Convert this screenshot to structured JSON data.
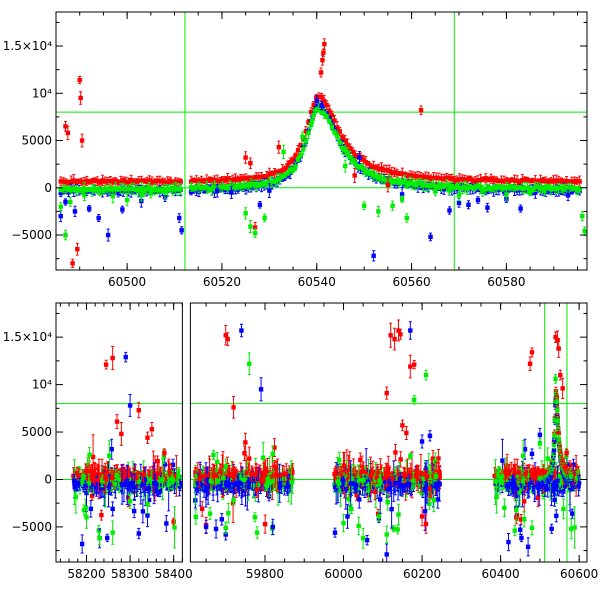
{
  "chart_data": [
    {
      "type": "scatter",
      "panel": "top",
      "xlim": [
        60485,
        60597
      ],
      "ylim": [
        -8700,
        18600
      ],
      "xticks": [
        60500,
        60520,
        60540,
        60560,
        60580
      ],
      "x_tick_labels": [
        "60500",
        "60520",
        "60540",
        "60560",
        "60580"
      ],
      "yticks": [
        -5000,
        0,
        5000,
        10000,
        15000
      ],
      "y_tick_labels": [
        "−5000",
        "0",
        "5000",
        "10⁴",
        "1.5×10⁴"
      ],
      "hlines": [
        0,
        8000
      ],
      "vlines": [
        60512.2,
        60569.0
      ],
      "grid": false,
      "legend": "none",
      "series": [
        {
          "color": "#ff0000",
          "points": [
            [
              60487,
              6500
            ],
            [
              60487.5,
              5800
            ],
            [
              60488.5,
              -8000
            ],
            [
              60489.5,
              -6500
            ],
            [
              60490,
              11400
            ],
            [
              60490.2,
              9500
            ],
            [
              60490.5,
              5000
            ],
            [
              60525,
              3200
            ],
            [
              60526,
              2600
            ],
            [
              60527,
              -4200
            ],
            [
              60532,
              4300
            ],
            [
              60541.6,
              15200
            ],
            [
              60541.4,
              14300
            ],
            [
              60541.2,
              13500
            ],
            [
              60540.9,
              12200
            ],
            [
              60562,
              8200
            ],
            [
              60548,
              1300
            ],
            [
              60555,
              300
            ]
          ]
        },
        {
          "color": "#0000ff",
          "points": [
            [
              60486,
              -3000
            ],
            [
              60487,
              -1500
            ],
            [
              60489,
              -2500
            ],
            [
              60492,
              -2200
            ],
            [
              60494,
              -3200
            ],
            [
              60496,
              -5000
            ],
            [
              60499,
              -2300
            ],
            [
              60503,
              -1400
            ],
            [
              60508,
              -1000
            ],
            [
              60511,
              -3200
            ],
            [
              60511.5,
              -4500
            ],
            [
              60519,
              -300
            ],
            [
              60522,
              -500
            ],
            [
              60528,
              -1800
            ],
            [
              60530,
              -300
            ],
            [
              60540,
              9200
            ],
            [
              60541,
              8700
            ],
            [
              60549,
              3200
            ],
            [
              60552,
              -7200
            ],
            [
              60558,
              -700
            ],
            [
              60564,
              -5200
            ],
            [
              60568,
              -2400
            ],
            [
              60570,
              -1600
            ],
            [
              60572,
              -1800
            ],
            [
              60574,
              -1300
            ],
            [
              60576,
              -2100
            ],
            [
              60580,
              -1200
            ],
            [
              60583,
              -2200
            ],
            [
              60593,
              -800
            ]
          ]
        },
        {
          "color": "#00ee00",
          "points": [
            [
              60486,
              -2000
            ],
            [
              60487,
              -5000
            ],
            [
              60488,
              -1500
            ],
            [
              60491,
              -800
            ],
            [
              60494,
              -300
            ],
            [
              60497,
              -900
            ],
            [
              60500,
              -1300
            ],
            [
              60503,
              -800
            ],
            [
              60505,
              -600
            ],
            [
              60508,
              -400
            ],
            [
              60525,
              -2700
            ],
            [
              60526,
              -4100
            ],
            [
              60527,
              -4800
            ],
            [
              60529,
              -3200
            ],
            [
              60533,
              3800
            ],
            [
              60537,
              5400
            ],
            [
              60539,
              7000
            ],
            [
              60546,
              2300
            ],
            [
              60550,
              -1900
            ],
            [
              60553,
              -2500
            ],
            [
              60556,
              -1900
            ],
            [
              60558,
              -1200
            ],
            [
              60559,
              -3200
            ],
            [
              60565,
              -400
            ],
            [
              60568,
              -300
            ],
            [
              60570,
              -800
            ],
            [
              60575,
              -300
            ],
            [
              60580,
              -700
            ],
            [
              60585,
              -500
            ],
            [
              60588,
              -300
            ],
            [
              60592,
              -200
            ],
            [
              60596,
              -3000
            ],
            [
              60596.5,
              -4600
            ]
          ]
        }
      ]
    },
    {
      "type": "scatter",
      "panel": "bottom",
      "segments": [
        {
          "xlim": [
            58130,
            58420
          ],
          "xticks": [
            58200,
            58300,
            58400
          ],
          "x_tick_labels": [
            "58200",
            "58300",
            "58400"
          ]
        },
        {
          "xlim": [
            59610,
            60620
          ],
          "xticks": [
            59800,
            60000,
            60200,
            60400,
            60600
          ],
          "x_tick_labels": [
            "59800",
            "60000",
            "60200",
            "60400",
            "60600"
          ]
        }
      ],
      "ylim": [
        -8700,
        18600
      ],
      "yticks": [
        -5000,
        0,
        5000,
        10000,
        15000
      ],
      "y_tick_labels": [
        "−5000",
        "0",
        "5000",
        "10⁴",
        "1.5×10⁴"
      ],
      "hlines": [
        0,
        8000
      ],
      "vlines": [
        60512.2,
        60569.0
      ],
      "grid": false,
      "legend": "none",
      "clusters": [
        {
          "xmin": 58170,
          "xmax": 58415,
          "ymin": -2600,
          "ymax": 1800
        },
        {
          "xmin": 59622,
          "xmax": 59870,
          "ymin": -3200,
          "ymax": 2200
        },
        {
          "xmin": 59975,
          "xmax": 60245,
          "ymin": -3000,
          "ymax": 2200
        },
        {
          "xmin": 60385,
          "xmax": 60600,
          "ymin": -2200,
          "ymax": 1800
        }
      ],
      "series": [
        {
          "color": "#ff0000",
          "points": [
            [
              58245,
              12100
            ],
            [
              58260,
              12800
            ],
            [
              58270,
              6100
            ],
            [
              58280,
              4800
            ],
            [
              58320,
              7300
            ],
            [
              58340,
              4400
            ],
            [
              58350,
              5300
            ],
            [
              59640,
              -3100
            ],
            [
              59650,
              -4800
            ],
            [
              59700,
              15200
            ],
            [
              59705,
              14800
            ],
            [
              59720,
              7600
            ],
            [
              59750,
              3900
            ],
            [
              59760,
              2200
            ],
            [
              59780,
              -1100
            ],
            [
              60080,
              -1300
            ],
            [
              60110,
              9100
            ],
            [
              60120,
              15200
            ],
            [
              60130,
              14800
            ],
            [
              60140,
              15700
            ],
            [
              60145,
              15300
            ],
            [
              60150,
              5700
            ],
            [
              60160,
              4900
            ],
            [
              60170,
              11900
            ],
            [
              60180,
              12100
            ],
            [
              60200,
              -3900
            ],
            [
              60210,
              -4700
            ],
            [
              60220,
              -1000
            ],
            [
              60440,
              -4000
            ],
            [
              60460,
              -2300
            ],
            [
              60475,
              12200
            ],
            [
              60480,
              13400
            ],
            [
              60540,
              15000
            ],
            [
              60545,
              14700
            ],
            [
              60548,
              13800
            ],
            [
              60552,
              11000
            ],
            [
              60558,
              9600
            ]
          ]
        },
        {
          "color": "#0000ff",
          "points": [
            [
              58190,
              -6800
            ],
            [
              58210,
              -3100
            ],
            [
              58230,
              -6200
            ],
            [
              58260,
              -3100
            ],
            [
              58290,
              12900
            ],
            [
              58300,
              7800
            ],
            [
              58320,
              -5700
            ],
            [
              58340,
              -3800
            ],
            [
              59650,
              -5000
            ],
            [
              59690,
              -4200
            ],
            [
              59700,
              -5800
            ],
            [
              59740,
              15700
            ],
            [
              59790,
              9500
            ],
            [
              59820,
              -5000
            ],
            [
              60010,
              -3900
            ],
            [
              60040,
              -2100
            ],
            [
              60060,
              -6400
            ],
            [
              60090,
              -4100
            ],
            [
              60110,
              -7900
            ],
            [
              60170,
              15700
            ],
            [
              60200,
              4000
            ],
            [
              60220,
              4600
            ],
            [
              60240,
              -2100
            ],
            [
              60420,
              -6600
            ],
            [
              60440,
              -3000
            ],
            [
              60450,
              -5300
            ],
            [
              60470,
              -7100
            ],
            [
              60480,
              2700
            ],
            [
              60500,
              4700
            ],
            [
              60520,
              -1000
            ],
            [
              60530,
              -5200
            ]
          ]
        },
        {
          "color": "#00ee00",
          "points": [
            [
              58200,
              -4000
            ],
            [
              58230,
              -6200
            ],
            [
              58260,
              -5600
            ],
            [
              58300,
              -2300
            ],
            [
              58340,
              -2600
            ],
            [
              59660,
              -3600
            ],
            [
              59700,
              -5100
            ],
            [
              59720,
              -2200
            ],
            [
              59760,
              12200
            ],
            [
              59780,
              -5600
            ],
            [
              59820,
              2700
            ],
            [
              60000,
              -4600
            ],
            [
              60020,
              -3100
            ],
            [
              60050,
              -6200
            ],
            [
              60090,
              -3900
            ],
            [
              60110,
              -5800
            ],
            [
              60140,
              -3700
            ],
            [
              60180,
              8400
            ],
            [
              60210,
              11000
            ],
            [
              60230,
              -2200
            ],
            [
              60440,
              -3200
            ],
            [
              60460,
              -4200
            ],
            [
              60480,
              -5100
            ],
            [
              60500,
              3800
            ],
            [
              60520,
              2200
            ],
            [
              60540,
              10600
            ],
            [
              60560,
              -3100
            ],
            [
              60580,
              -5200
            ]
          ]
        }
      ]
    }
  ]
}
